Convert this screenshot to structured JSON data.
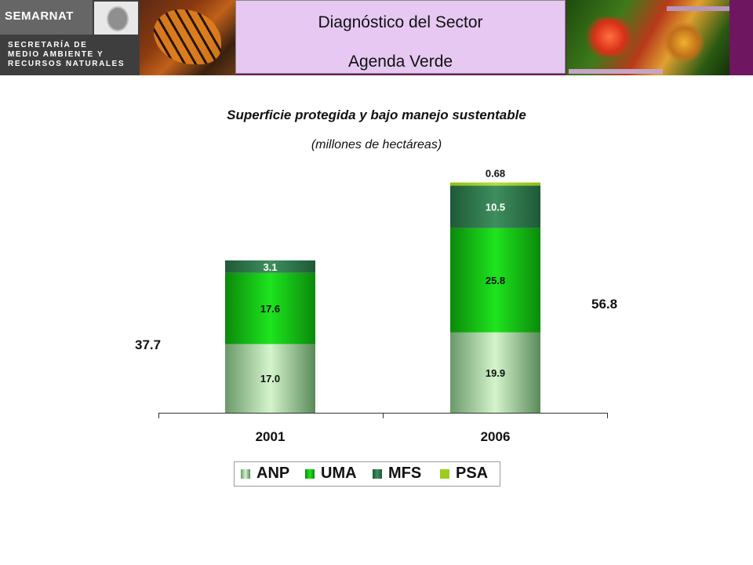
{
  "header": {
    "logo_name": "SEMARNAT",
    "logo_sub_1": "SECRETARÍA DE",
    "logo_sub_2": "MEDIO AMBIENTE Y",
    "logo_sub_3": "RECURSOS NATURALES",
    "title_line1": "Diagnóstico del Sector",
    "title_line2": "Agenda Verde"
  },
  "colors": {
    "header_bg": "#6e1660",
    "title_box_bg": "#e6c8f2",
    "ANP": "#c8eec0",
    "UMA": "#12c812",
    "MFS": "#2e7a4e",
    "PSA": "#9ccc1e"
  },
  "chart_data": {
    "type": "bar",
    "stacked": true,
    "title": "Superficie protegida y bajo manejo sustentable",
    "subtitle": "(millones de hectáreas)",
    "categories": [
      "2001",
      "2006"
    ],
    "series": [
      {
        "name": "ANP",
        "values": [
          17.0,
          19.9
        ],
        "labels": [
          "17.0",
          "19.9"
        ]
      },
      {
        "name": "UMA",
        "values": [
          17.6,
          25.8
        ],
        "labels": [
          "17.6",
          "25.8"
        ]
      },
      {
        "name": "MFS",
        "values": [
          3.1,
          10.5
        ],
        "labels": [
          "3.1",
          "10.5"
        ]
      },
      {
        "name": "PSA",
        "values": [
          0,
          0.68
        ],
        "labels": [
          "",
          "0.68"
        ]
      }
    ],
    "totals": [
      "37.7",
      "56.8"
    ],
    "ylim": [
      0,
      60
    ],
    "grid": false,
    "legend": "bottom"
  }
}
